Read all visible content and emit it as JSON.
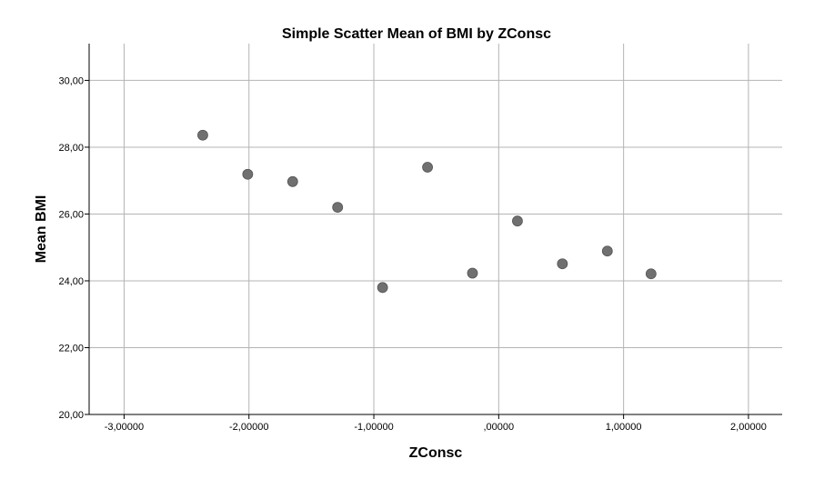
{
  "chart_data": {
    "type": "scatter",
    "title": "Simple Scatter Mean of BMI by ZConsc",
    "xlabel": "ZConsc",
    "ylabel": "Mean BMI",
    "xlim": [
      -3.28,
      2.27
    ],
    "ylim": [
      20,
      31.1
    ],
    "xticks": [
      -3,
      -2,
      -1,
      0,
      1,
      2
    ],
    "xtick_labels": [
      "-3,00000",
      "-2,00000",
      "-1,00000",
      ",00000",
      "1,00000",
      "2,00000"
    ],
    "yticks": [
      20,
      22,
      24,
      26,
      28,
      30
    ],
    "ytick_labels": [
      "20,00",
      "22,00",
      "24,00",
      "26,00",
      "28,00",
      "30,00"
    ],
    "grid": true,
    "point_color": "#707070",
    "points": [
      {
        "x": -2.37,
        "y": 28.36
      },
      {
        "x": -2.01,
        "y": 27.19
      },
      {
        "x": -1.65,
        "y": 26.97
      },
      {
        "x": -1.29,
        "y": 26.2
      },
      {
        "x": -0.93,
        "y": 23.8
      },
      {
        "x": -0.57,
        "y": 27.4
      },
      {
        "x": -0.21,
        "y": 24.23
      },
      {
        "x": 0.15,
        "y": 25.79
      },
      {
        "x": 0.51,
        "y": 24.51
      },
      {
        "x": 0.87,
        "y": 24.89
      },
      {
        "x": 1.22,
        "y": 24.21
      }
    ]
  }
}
